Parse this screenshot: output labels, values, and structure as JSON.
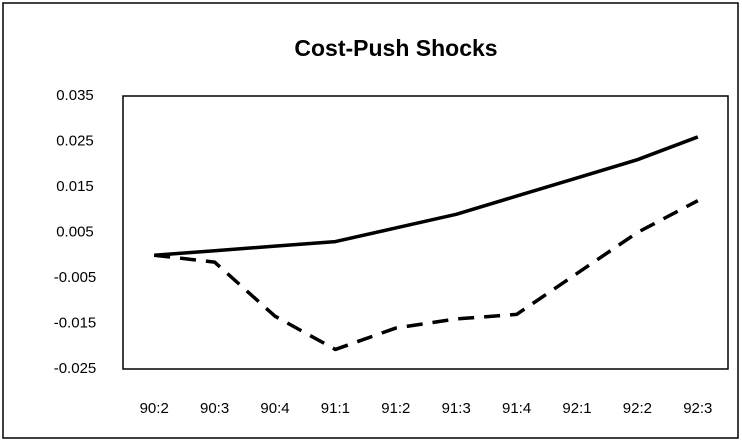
{
  "chart_data": {
    "type": "line",
    "title": "Cost-Push Shocks",
    "categories": [
      "90:2",
      "90:3",
      "90:4",
      "91:1",
      "91:2",
      "91:3",
      "91:4",
      "92:1",
      "92:2",
      "92:3"
    ],
    "series": [
      {
        "color": "#000000",
        "dash": false,
        "values": [
          0.0,
          0.001,
          0.002,
          0.003,
          0.006,
          0.009,
          0.013,
          0.017,
          0.021,
          0.026
        ]
      },
      {
        "color": "#000000",
        "dash": true,
        "values": [
          0.0,
          -0.0015,
          -0.0134,
          -0.0207,
          -0.016,
          -0.014,
          -0.013,
          -0.004,
          0.005,
          0.012
        ]
      }
    ],
    "ylim": [
      -0.025,
      0.035
    ],
    "yticks": [
      -0.025,
      -0.015,
      -0.005,
      0.005,
      0.015,
      0.025,
      0.035
    ],
    "grid": false
  }
}
